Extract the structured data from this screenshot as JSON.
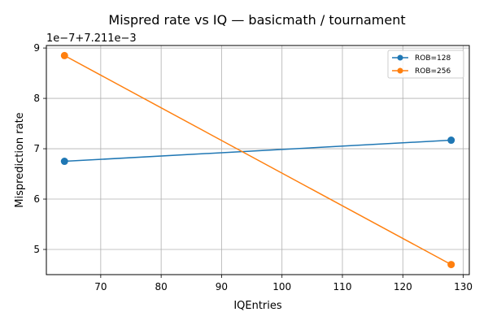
{
  "chart_data": {
    "type": "line",
    "title": "Mispred rate vs IQ — basicmath / tournament",
    "xlabel": "IQEntries",
    "ylabel": "Misprediction rate",
    "y_offset_label": "1e−7+7.211e−3",
    "xlim": [
      61,
      131
    ],
    "ylim": [
      4.5,
      9.05
    ],
    "x_ticks": [
      70,
      80,
      90,
      100,
      110,
      120,
      130
    ],
    "y_ticks": [
      5,
      6,
      7,
      8,
      9
    ],
    "grid": true,
    "legend_position": "top-right",
    "series": [
      {
        "name": "ROB=128",
        "color": "#1f77b4",
        "x": [
          64,
          128
        ],
        "y": [
          6.75,
          7.17
        ]
      },
      {
        "name": "ROB=256",
        "color": "#ff7f0e",
        "x": [
          64,
          128
        ],
        "y": [
          8.85,
          4.7
        ]
      }
    ]
  }
}
